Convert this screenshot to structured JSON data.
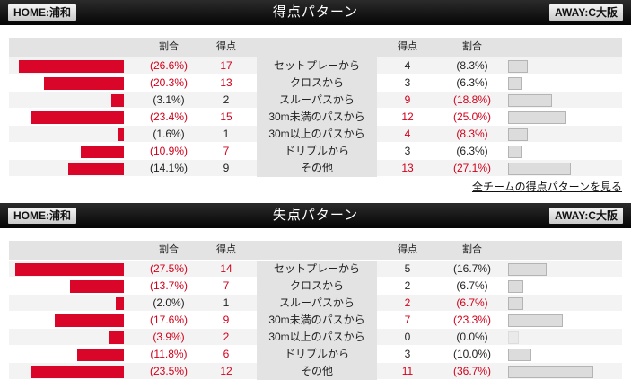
{
  "home_team": "HOME:浦和",
  "away_team": "AWAY:C大阪",
  "columns": {
    "ratio": "割合",
    "count": "得点"
  },
  "colors": {
    "home_bar": "#d9062a",
    "away_bar": "#dcdcdc",
    "highlight": "#d0021b"
  },
  "scoring": {
    "title": "得点パターン",
    "rows": [
      {
        "label": "セットプレーから",
        "home_ratio": "(26.6%)",
        "home_count": "17",
        "away_count": "4",
        "away_ratio": "(8.3%)",
        "home_pct": 26.6,
        "away_pct": 8.3,
        "home_hl": true,
        "away_hl": false
      },
      {
        "label": "クロスから",
        "home_ratio": "(20.3%)",
        "home_count": "13",
        "away_count": "3",
        "away_ratio": "(6.3%)",
        "home_pct": 20.3,
        "away_pct": 6.3,
        "home_hl": true,
        "away_hl": false
      },
      {
        "label": "スルーパスから",
        "home_ratio": "(3.1%)",
        "home_count": "2",
        "away_count": "9",
        "away_ratio": "(18.8%)",
        "home_pct": 3.1,
        "away_pct": 18.8,
        "home_hl": false,
        "away_hl": true
      },
      {
        "label": "30m未満のパスから",
        "home_ratio": "(23.4%)",
        "home_count": "15",
        "away_count": "12",
        "away_ratio": "(25.0%)",
        "home_pct": 23.4,
        "away_pct": 25.0,
        "home_hl": true,
        "away_hl": true
      },
      {
        "label": "30m以上のパスから",
        "home_ratio": "(1.6%)",
        "home_count": "1",
        "away_count": "4",
        "away_ratio": "(8.3%)",
        "home_pct": 1.6,
        "away_pct": 8.3,
        "home_hl": false,
        "away_hl": true
      },
      {
        "label": "ドリブルから",
        "home_ratio": "(10.9%)",
        "home_count": "7",
        "away_count": "3",
        "away_ratio": "(6.3%)",
        "home_pct": 10.9,
        "away_pct": 6.3,
        "home_hl": true,
        "away_hl": false
      },
      {
        "label": "その他",
        "home_ratio": "(14.1%)",
        "home_count": "9",
        "away_count": "13",
        "away_ratio": "(27.1%)",
        "home_pct": 14.1,
        "away_pct": 27.1,
        "home_hl": false,
        "away_hl": true
      }
    ]
  },
  "link_all_teams": "全チームの得点パターンを見る",
  "conceded": {
    "title": "失点パターン",
    "rows": [
      {
        "label": "セットプレーから",
        "home_ratio": "(27.5%)",
        "home_count": "14",
        "away_count": "5",
        "away_ratio": "(16.7%)",
        "home_pct": 27.5,
        "away_pct": 16.7,
        "home_hl": true,
        "away_hl": false
      },
      {
        "label": "クロスから",
        "home_ratio": "(13.7%)",
        "home_count": "7",
        "away_count": "2",
        "away_ratio": "(6.7%)",
        "home_pct": 13.7,
        "away_pct": 6.7,
        "home_hl": true,
        "away_hl": false
      },
      {
        "label": "スルーパスから",
        "home_ratio": "(2.0%)",
        "home_count": "1",
        "away_count": "2",
        "away_ratio": "(6.7%)",
        "home_pct": 2.0,
        "away_pct": 6.7,
        "home_hl": false,
        "away_hl": true
      },
      {
        "label": "30m未満のパスから",
        "home_ratio": "(17.6%)",
        "home_count": "9",
        "away_count": "7",
        "away_ratio": "(23.3%)",
        "home_pct": 17.6,
        "away_pct": 23.3,
        "home_hl": true,
        "away_hl": true
      },
      {
        "label": "30m以上のパスから",
        "home_ratio": "(3.9%)",
        "home_count": "2",
        "away_count": "0",
        "away_ratio": "(0.0%)",
        "home_pct": 3.9,
        "away_pct": 0.0,
        "home_hl": true,
        "away_hl": false
      },
      {
        "label": "ドリブルから",
        "home_ratio": "(11.8%)",
        "home_count": "6",
        "away_count": "3",
        "away_ratio": "(10.0%)",
        "home_pct": 11.8,
        "away_pct": 10.0,
        "home_hl": true,
        "away_hl": false
      },
      {
        "label": "その他",
        "home_ratio": "(23.5%)",
        "home_count": "12",
        "away_count": "11",
        "away_ratio": "(36.7%)",
        "home_pct": 23.5,
        "away_pct": 36.7,
        "home_hl": true,
        "away_hl": true
      }
    ]
  }
}
